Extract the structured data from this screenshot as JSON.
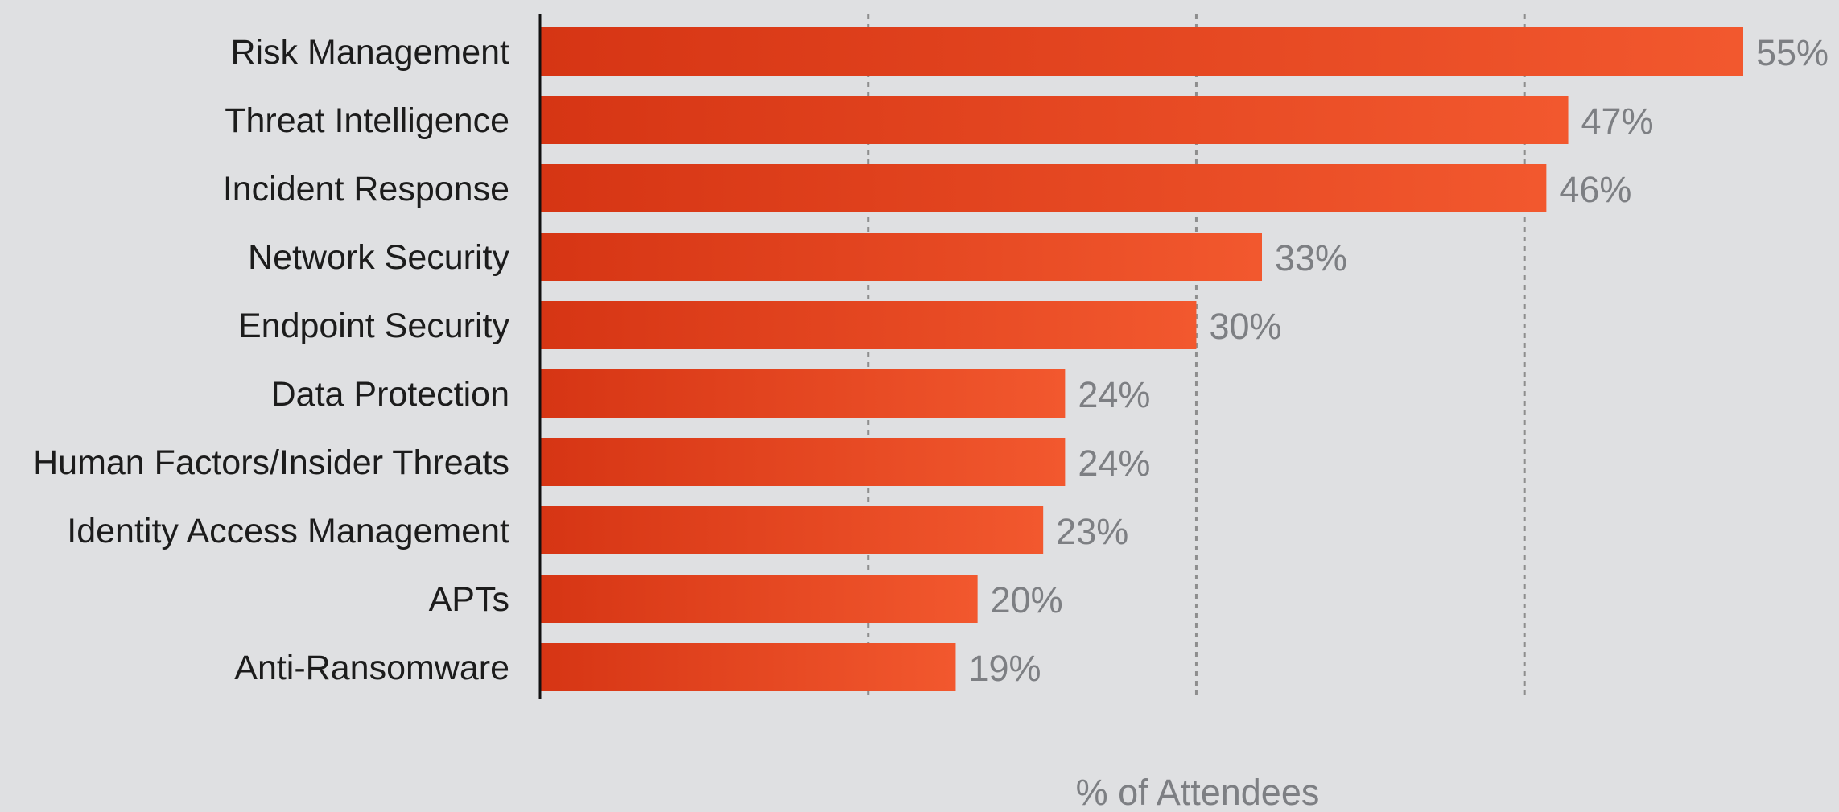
{
  "chart_data": {
    "type": "bar",
    "orientation": "horizontal",
    "categories": [
      "Risk Management",
      "Threat Intelligence",
      "Incident Response",
      "Network Security",
      "Endpoint Security",
      "Data Protection",
      "Human Factors/Insider Threats",
      "Identity Access Management",
      "APTs",
      "Anti-Ransomware"
    ],
    "values": [
      55,
      47,
      46,
      33,
      30,
      24,
      24,
      23,
      20,
      19
    ],
    "value_labels": [
      "55%",
      "47%",
      "46%",
      "33%",
      "30%",
      "24%",
      "24%",
      "23%",
      "20%",
      "19%"
    ],
    "xlabel": "% of Attendees",
    "ylabel": "",
    "title": "",
    "xlim": [
      0,
      55
    ],
    "gridlines": [
      15,
      30,
      45
    ],
    "grid": "vertical-dotted",
    "legend": "none",
    "colors": {
      "background": "#dfe0e2",
      "bar_start": "#d63514",
      "bar_end": "#f2582e",
      "axis": "#111111",
      "grid": "#8e8e8e",
      "value_text": "#7d7f83",
      "category_text": "#1c1c1c"
    }
  }
}
